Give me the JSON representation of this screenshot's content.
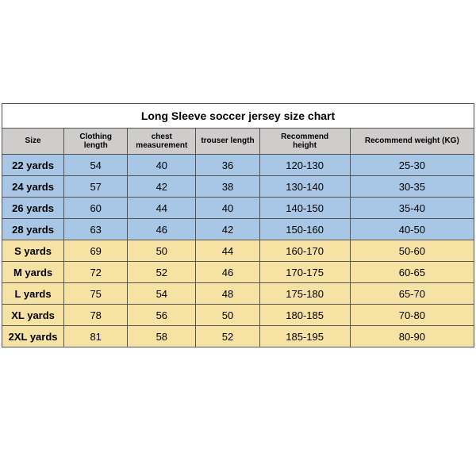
{
  "title": "Long Sleeve soccer jersey size chart",
  "columns": [
    {
      "lines": [
        "Size"
      ]
    },
    {
      "lines": [
        "Clothing",
        "length"
      ]
    },
    {
      "lines": [
        "chest measurement"
      ]
    },
    {
      "lines": [
        "trouser length"
      ]
    },
    {
      "lines": [
        "Recommend",
        "height"
      ]
    },
    {
      "lines": [
        "Recommend weight (KG)"
      ]
    }
  ],
  "colWidths": [
    "78px",
    "80px",
    "86px",
    "80px",
    "114px",
    "156px"
  ],
  "groupColors": {
    "blue": "#a8c7e6",
    "yellow": "#f6e2a3"
  },
  "rows": [
    {
      "group": "blue",
      "cells": [
        "22 yards",
        "54",
        "40",
        "36",
        "120-130",
        "25-30"
      ]
    },
    {
      "group": "blue",
      "cells": [
        "24 yards",
        "57",
        "42",
        "38",
        "130-140",
        "30-35"
      ]
    },
    {
      "group": "blue",
      "cells": [
        "26 yards",
        "60",
        "44",
        "40",
        "140-150",
        "35-40"
      ]
    },
    {
      "group": "blue",
      "cells": [
        "28 yards",
        "63",
        "46",
        "42",
        "150-160",
        "40-50"
      ]
    },
    {
      "group": "yellow",
      "cells": [
        "S yards",
        "69",
        "50",
        "44",
        "160-170",
        "50-60"
      ]
    },
    {
      "group": "yellow",
      "cells": [
        "M yards",
        "72",
        "52",
        "46",
        "170-175",
        "60-65"
      ]
    },
    {
      "group": "yellow",
      "cells": [
        "L yards",
        "75",
        "54",
        "48",
        "175-180",
        "65-70"
      ]
    },
    {
      "group": "yellow",
      "cells": [
        "XL yards",
        "78",
        "56",
        "50",
        "180-185",
        "70-80"
      ]
    },
    {
      "group": "yellow",
      "cells": [
        "2XL yards",
        "81",
        "58",
        "52",
        "185-195",
        "80-90"
      ]
    }
  ]
}
